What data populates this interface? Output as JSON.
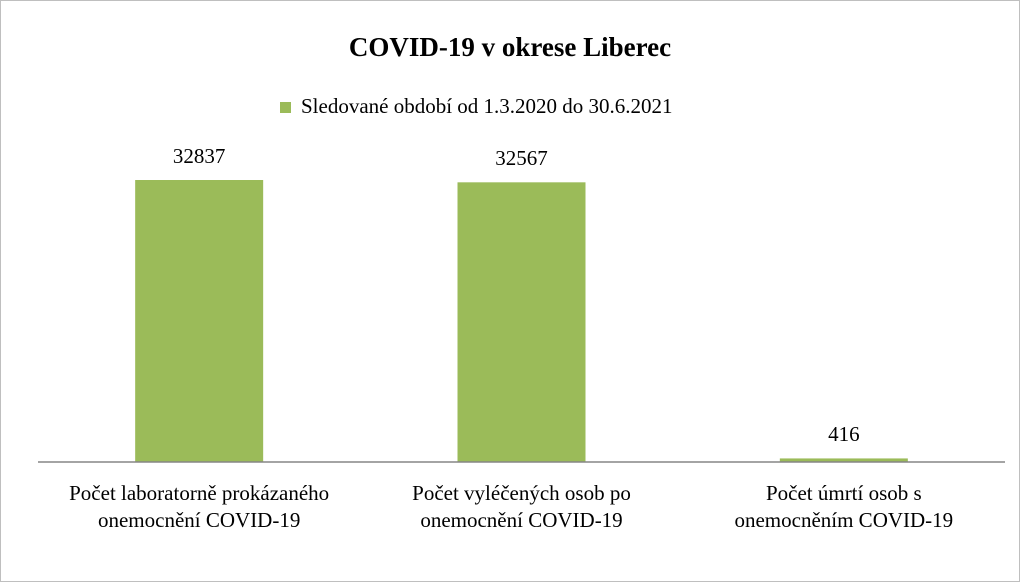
{
  "chart_data": {
    "type": "bar",
    "title": "COVID-19 v okrese Liberec",
    "categories": [
      "Počet laboratorně prokázaného onemocnění COVID-19",
      "Počet vyléčených osob po onemocnění COVID-19",
      "Počet úmrtí osob s onemocněním COVID-19"
    ],
    "series": [
      {
        "name": "Sledované období od 1.3.2020 do 30.6.2021",
        "color": "#9bbb59",
        "values": [
          32837,
          32567,
          416
        ]
      }
    ],
    "legend": "top"
  }
}
